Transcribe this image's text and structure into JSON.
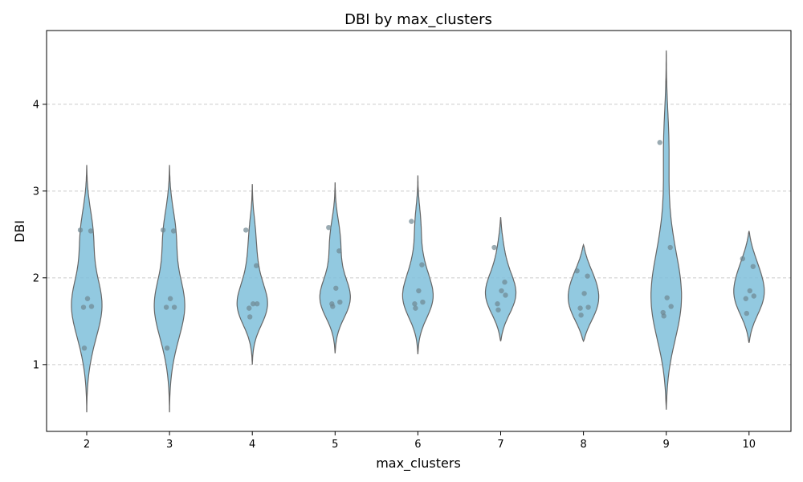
{
  "chart_data": {
    "type": "violin",
    "title": "DBI by max_clusters",
    "xlabel": "max_clusters",
    "ylabel": "DBI",
    "ylim": [
      0.23,
      4.85
    ],
    "yticks": [
      1,
      2,
      3,
      4
    ],
    "grid": "horizontal-dashed",
    "categories": [
      "2",
      "3",
      "4",
      "5",
      "6",
      "7",
      "8",
      "9",
      "10"
    ],
    "groups": [
      {
        "category": "2",
        "min": 0.45,
        "max": 3.3,
        "points": [
          2.55,
          2.54,
          1.76,
          1.67,
          1.66,
          1.19
        ],
        "mode": 1.7
      },
      {
        "category": "3",
        "min": 0.45,
        "max": 3.3,
        "points": [
          2.55,
          2.54,
          1.76,
          1.66,
          1.66,
          1.19
        ],
        "mode": 1.7
      },
      {
        "category": "4",
        "min": 1.0,
        "max": 3.08,
        "points": [
          2.55,
          2.14,
          1.7,
          1.7,
          1.65,
          1.55
        ],
        "mode": 1.7
      },
      {
        "category": "5",
        "min": 1.13,
        "max": 3.1,
        "points": [
          2.58,
          2.31,
          1.88,
          1.72,
          1.7,
          1.67
        ],
        "mode": 1.75
      },
      {
        "category": "6",
        "min": 1.12,
        "max": 3.18,
        "points": [
          2.65,
          2.15,
          1.85,
          1.72,
          1.7,
          1.65
        ],
        "mode": 1.78
      },
      {
        "category": "7",
        "min": 1.27,
        "max": 2.7,
        "points": [
          2.35,
          1.95,
          1.85,
          1.8,
          1.7,
          1.63
        ],
        "mode": 1.82
      },
      {
        "category": "8",
        "min": 1.27,
        "max": 2.38,
        "points": [
          2.08,
          2.02,
          1.82,
          1.66,
          1.65,
          1.57
        ],
        "mode": 1.78
      },
      {
        "category": "9",
        "min": 0.48,
        "max": 4.62,
        "points": [
          3.56,
          2.35,
          1.77,
          1.67,
          1.6,
          1.56
        ],
        "mode": 1.7
      },
      {
        "category": "10",
        "min": 1.25,
        "max": 2.54,
        "points": [
          2.22,
          2.13,
          1.85,
          1.79,
          1.76,
          1.59
        ],
        "mode": 1.85
      }
    ]
  }
}
